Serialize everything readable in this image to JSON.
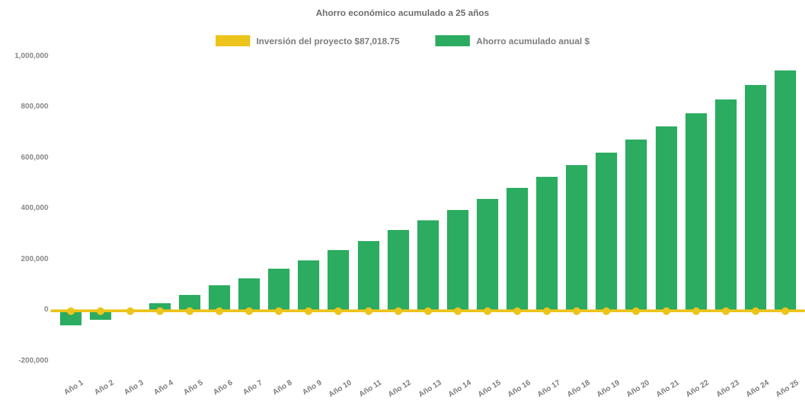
{
  "title": "Ahorro económico acumulado a 25 años",
  "legend": {
    "items": [
      {
        "label": "Inversión del proyecto $87,018.75",
        "color": "#ecc41c"
      },
      {
        "label": "Ahorro acumulado anual $",
        "color": "#2cac60"
      }
    ]
  },
  "colors": {
    "bar_green": "#2cac60",
    "line_yellow": "#ecc41c",
    "text_gray": "#7d7d7d",
    "background": "#ffffff"
  },
  "chart_data": {
    "type": "bar",
    "title": "Ahorro económico acumulado a 25 años",
    "xlabel": "",
    "ylabel": "",
    "ylim": [
      -200000,
      1000000
    ],
    "grid": false,
    "legend_position": "top",
    "categories": [
      "Año 1",
      "Año 2",
      "Año 3",
      "Año 4",
      "Año 5",
      "Año 6",
      "Año 7",
      "Año 8",
      "Año 9",
      "Año 10",
      "Año 11",
      "Año 12",
      "Año 13",
      "Año 14",
      "Año 15",
      "Año 16",
      "Año 17",
      "Año 18",
      "Año 19",
      "Año 20",
      "Año 21",
      "Año 22",
      "Año 23",
      "Año 24",
      "Año 25"
    ],
    "series": [
      {
        "name": "Ahorro acumulado anual $",
        "type": "bar",
        "color": "#2cac60",
        "values": [
          -60000,
          -37000,
          -5000,
          27000,
          60000,
          97000,
          126000,
          162000,
          195000,
          236000,
          271000,
          315000,
          354000,
          395000,
          438000,
          481000,
          524000,
          571000,
          621000,
          672000,
          725000,
          775000,
          829000,
          887000,
          944000
        ]
      },
      {
        "name": "Inversión del proyecto $87,018.75",
        "type": "line",
        "color": "#ecc41c",
        "marker": "circle",
        "values": [
          0,
          0,
          0,
          0,
          0,
          0,
          0,
          0,
          0,
          0,
          0,
          0,
          0,
          0,
          0,
          0,
          0,
          0,
          0,
          0,
          0,
          0,
          0,
          0,
          0
        ]
      }
    ],
    "yticks": [
      {
        "value": 1000000,
        "label": "1,000,000"
      },
      {
        "value": 800000,
        "label": "800,000"
      },
      {
        "value": 600000,
        "label": "600,000"
      },
      {
        "value": 400000,
        "label": "400,000"
      },
      {
        "value": 200000,
        "label": "200,000"
      },
      {
        "value": 0,
        "label": "0"
      },
      {
        "value": -200000,
        "label": "-200,000"
      }
    ]
  }
}
